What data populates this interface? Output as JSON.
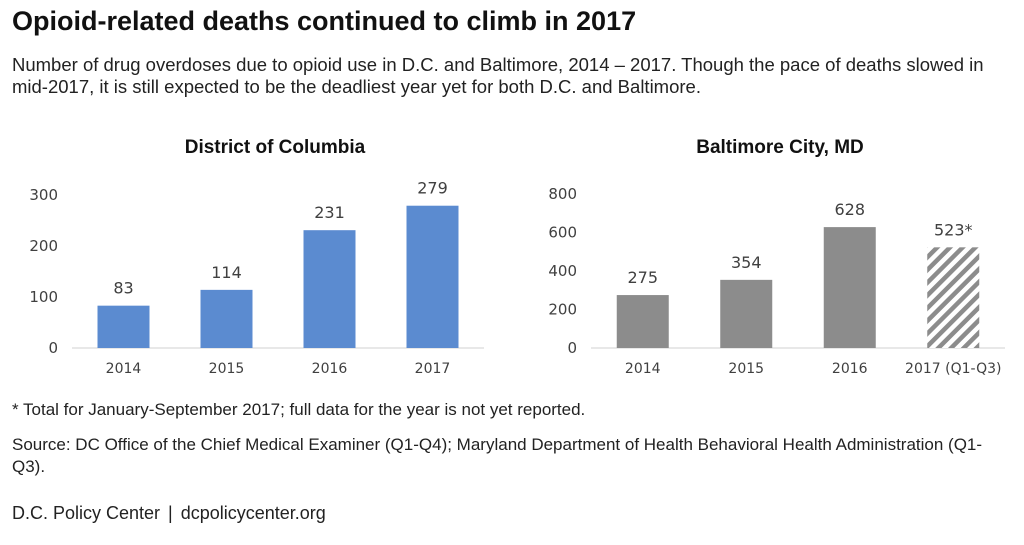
{
  "title": "Opioid-related deaths continued to climb in 2017",
  "subtitle": "Number of drug overdoses due to opioid use in D.C. and Baltimore, 2014 – 2017. Though the pace of deaths slowed in mid-2017, it is still expected to be the deadliest year yet for both D.C. and Baltimore.",
  "chart_data": [
    {
      "type": "bar",
      "title": "District of Columbia",
      "categories": [
        "2014",
        "2015",
        "2016",
        "2017"
      ],
      "values": [
        83,
        114,
        231,
        279
      ],
      "value_labels": [
        "83",
        "114",
        "231",
        "279"
      ],
      "ylim": [
        0,
        300
      ],
      "yticks": [
        0,
        100,
        200,
        300
      ],
      "color": "#5b8bd0",
      "grid": false,
      "legend": "none"
    },
    {
      "type": "bar",
      "title": "Baltimore City, MD",
      "categories": [
        "2014",
        "2015",
        "2016",
        "2017 (Q1-Q3)"
      ],
      "values": [
        275,
        354,
        628,
        523
      ],
      "value_labels": [
        "275",
        "354",
        "628",
        "523*"
      ],
      "ylim": [
        0,
        800
      ],
      "yticks": [
        0,
        200,
        400,
        600,
        800
      ],
      "color": "#8c8c8c",
      "hatched": [
        false,
        false,
        false,
        true
      ],
      "grid": false,
      "legend": "none"
    }
  ],
  "footnote": "* Total for January-September 2017; full data for the year is not yet reported.",
  "source": "Source: DC Office of the Chief Medical Examiner (Q1-Q4); Maryland Department of Health Behavioral Health Administration (Q1-Q3).",
  "footer": {
    "org": "D.C. Policy Center",
    "separator": "|",
    "site": "dcpolicycenter.org"
  }
}
